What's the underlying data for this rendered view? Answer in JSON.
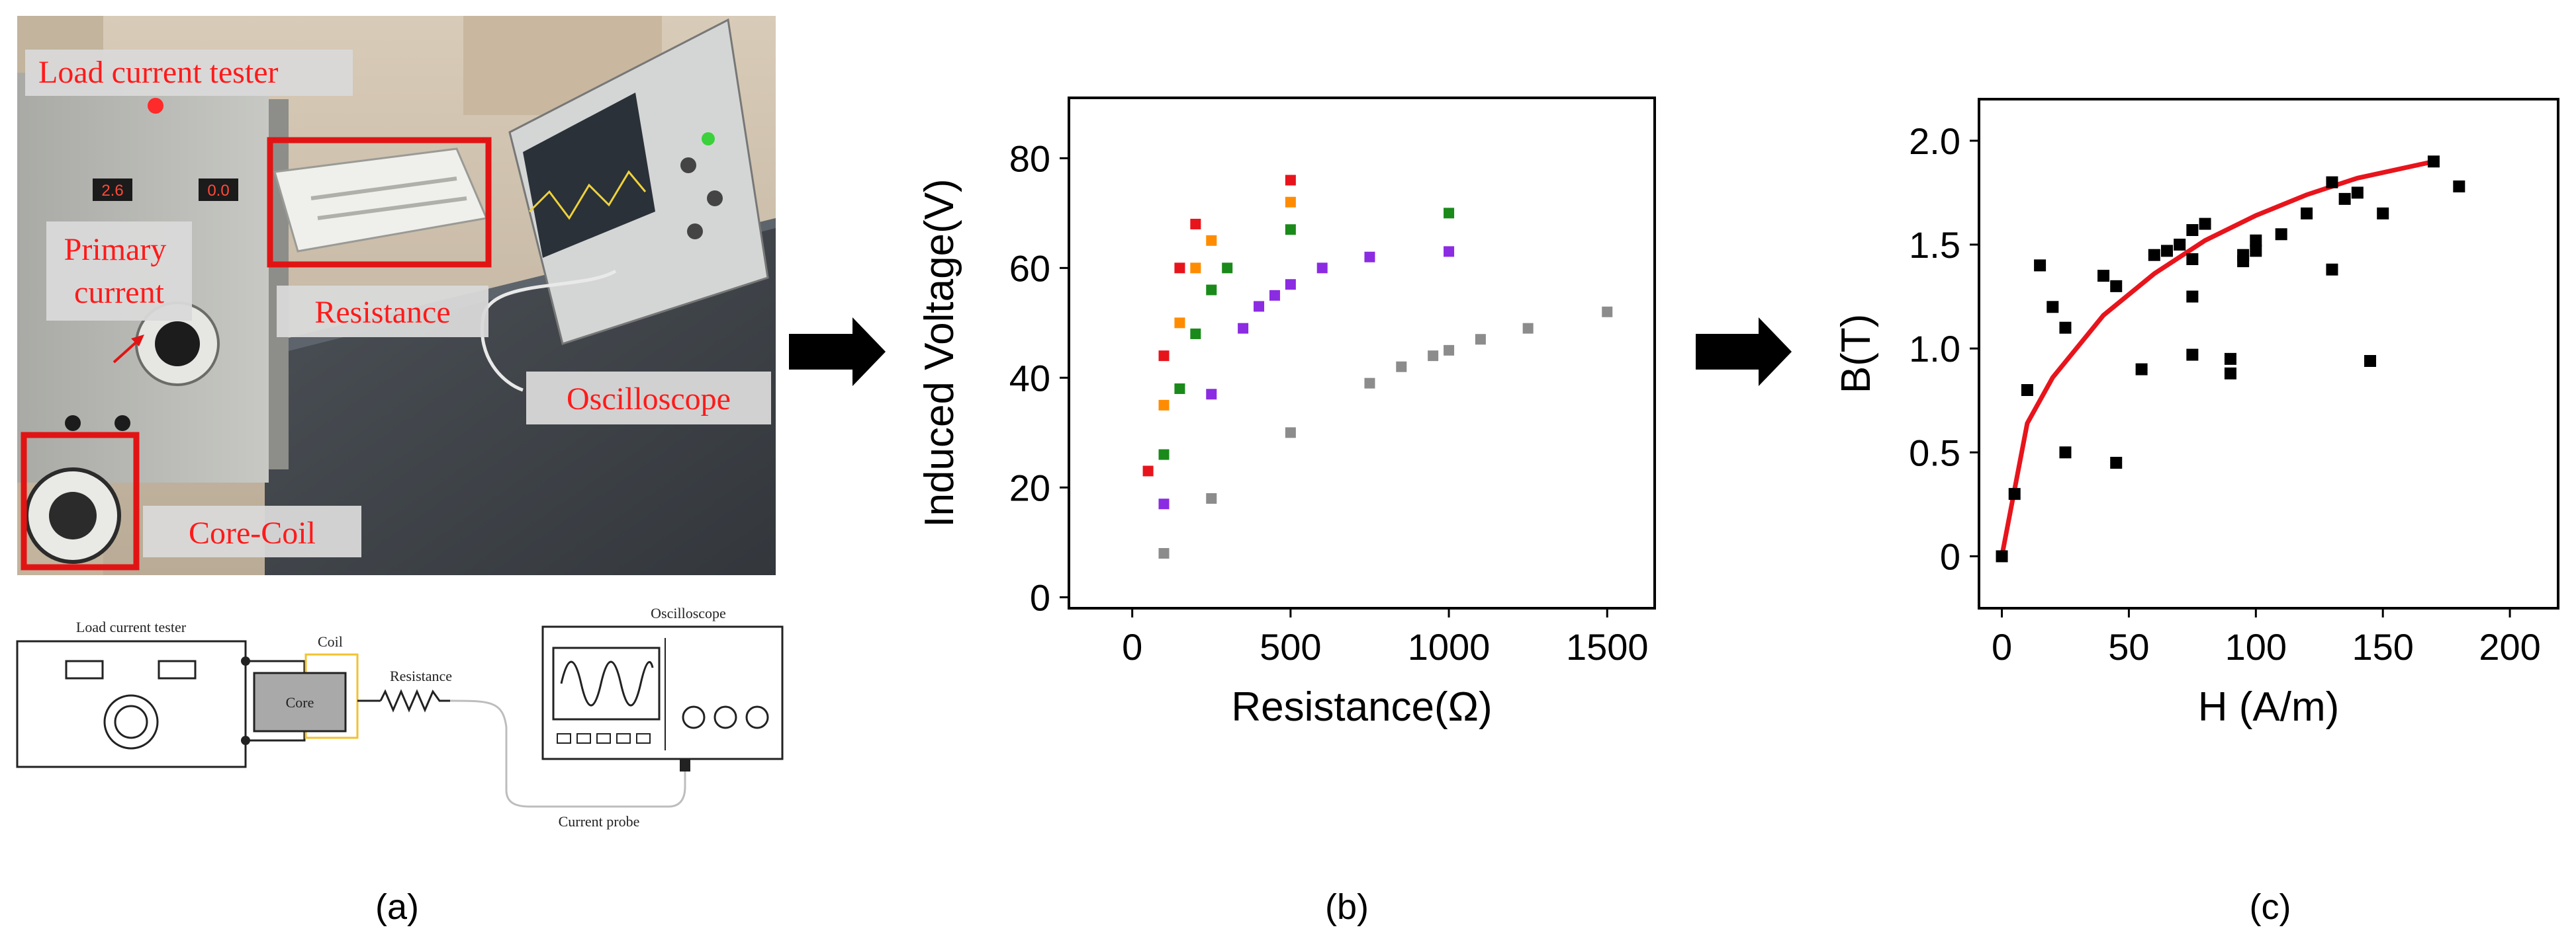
{
  "panel_labels": [
    "(a)",
    "(b)",
    "(c)"
  ],
  "photo": {
    "labels": {
      "load_current_tester": "Load current tester",
      "primary_current": "Primary current",
      "resistance": "Resistance",
      "oscilloscope": "Oscilloscope",
      "core_coil": "Core-Coil"
    },
    "label_color": "#ff1a1a",
    "highlight_color": "#e11414"
  },
  "schematic": {
    "load_current_tester": "Load current tester",
    "coil": "Coil",
    "core": "Core",
    "resistance": "Resistance",
    "oscilloscope": "Oscilloscope",
    "current_probe": "Current probe",
    "coil_wire_color": "#f2c230"
  },
  "arrows": [
    "right-arrow",
    "right-arrow"
  ],
  "chart_data": [
    {
      "type": "scatter",
      "title": "",
      "xlabel": "Resistance(Ω)",
      "ylabel": "Induced Voltage(V)",
      "xlim": [
        -200,
        1650
      ],
      "ylim": [
        -2,
        91
      ],
      "xticks": [
        0,
        500,
        1000,
        1500
      ],
      "yticks": [
        0,
        20,
        40,
        60,
        80
      ],
      "grid": false,
      "legend": "none",
      "series": [
        {
          "color": "#e8141c",
          "points": [
            [
              50,
              23
            ],
            [
              100,
              44
            ],
            [
              150,
              60
            ],
            [
              200,
              68
            ],
            [
              500,
              76
            ]
          ]
        },
        {
          "color": "#ff8c00",
          "points": [
            [
              100,
              35
            ],
            [
              150,
              50
            ],
            [
              200,
              60
            ],
            [
              250,
              65
            ],
            [
              500,
              72
            ]
          ]
        },
        {
          "color": "#1a8a1a",
          "points": [
            [
              100,
              26
            ],
            [
              150,
              38
            ],
            [
              200,
              48
            ],
            [
              250,
              56
            ],
            [
              300,
              60
            ],
            [
              500,
              67
            ],
            [
              1000,
              70
            ]
          ]
        },
        {
          "color": "#8b2be2",
          "points": [
            [
              100,
              17
            ],
            [
              250,
              37
            ],
            [
              350,
              49
            ],
            [
              400,
              53
            ],
            [
              450,
              55
            ],
            [
              500,
              57
            ],
            [
              600,
              60
            ],
            [
              750,
              62
            ],
            [
              1000,
              63
            ]
          ]
        },
        {
          "color": "#8c8c8c",
          "points": [
            [
              100,
              8
            ],
            [
              250,
              18
            ],
            [
              500,
              30
            ],
            [
              750,
              39
            ],
            [
              850,
              42
            ],
            [
              950,
              44
            ],
            [
              1000,
              45
            ],
            [
              1100,
              47
            ],
            [
              1250,
              49
            ],
            [
              1500,
              52
            ]
          ]
        }
      ]
    },
    {
      "type": "scatter",
      "title": "",
      "xlabel": "H (A/m)",
      "ylabel": "B(T)",
      "xlim": [
        -9,
        219
      ],
      "ylim": [
        -0.25,
        2.2
      ],
      "xticks": [
        0,
        50,
        100,
        150,
        200
      ],
      "yticks": [
        0,
        0.5,
        1.0,
        1.5,
        2.0
      ],
      "ytick_labels": [
        "0",
        "0.5",
        "1.0",
        "1.5",
        "2.0"
      ],
      "grid": false,
      "legend": "none",
      "series": [
        {
          "color": "#000000",
          "points": [
            [
              0,
              0
            ],
            [
              5,
              0.3
            ],
            [
              10,
              0.8
            ],
            [
              15,
              1.4
            ],
            [
              20,
              1.2
            ],
            [
              25,
              1.1
            ],
            [
              25,
              0.5
            ],
            [
              40,
              1.35
            ],
            [
              45,
              1.3
            ],
            [
              45,
              0.45
            ],
            [
              55,
              0.9
            ],
            [
              60,
              1.45
            ],
            [
              65,
              1.47
            ],
            [
              70,
              1.5
            ],
            [
              75,
              1.57
            ],
            [
              75,
              1.43
            ],
            [
              75,
              1.25
            ],
            [
              75,
              0.97
            ],
            [
              80,
              1.6
            ],
            [
              90,
              0.95
            ],
            [
              90,
              0.88
            ],
            [
              95,
              1.45
            ],
            [
              95,
              1.42
            ],
            [
              100,
              1.47
            ],
            [
              100,
              1.52
            ],
            [
              110,
              1.55
            ],
            [
              120,
              1.65
            ],
            [
              130,
              1.8
            ],
            [
              130,
              1.38
            ],
            [
              135,
              1.72
            ],
            [
              140,
              1.75
            ],
            [
              145,
              0.94
            ],
            [
              150,
              1.65
            ],
            [
              170,
              1.9
            ],
            [
              180,
              1.78
            ]
          ]
        }
      ],
      "fit_curve": {
        "color": "#e8141c",
        "x_range": [
          0,
          170
        ],
        "points": [
          [
            0,
            0
          ],
          [
            10,
            0.64
          ],
          [
            20,
            0.86
          ],
          [
            40,
            1.16
          ],
          [
            60,
            1.36
          ],
          [
            80,
            1.52
          ],
          [
            100,
            1.64
          ],
          [
            120,
            1.74
          ],
          [
            140,
            1.82
          ],
          [
            170,
            1.9
          ]
        ]
      }
    }
  ]
}
